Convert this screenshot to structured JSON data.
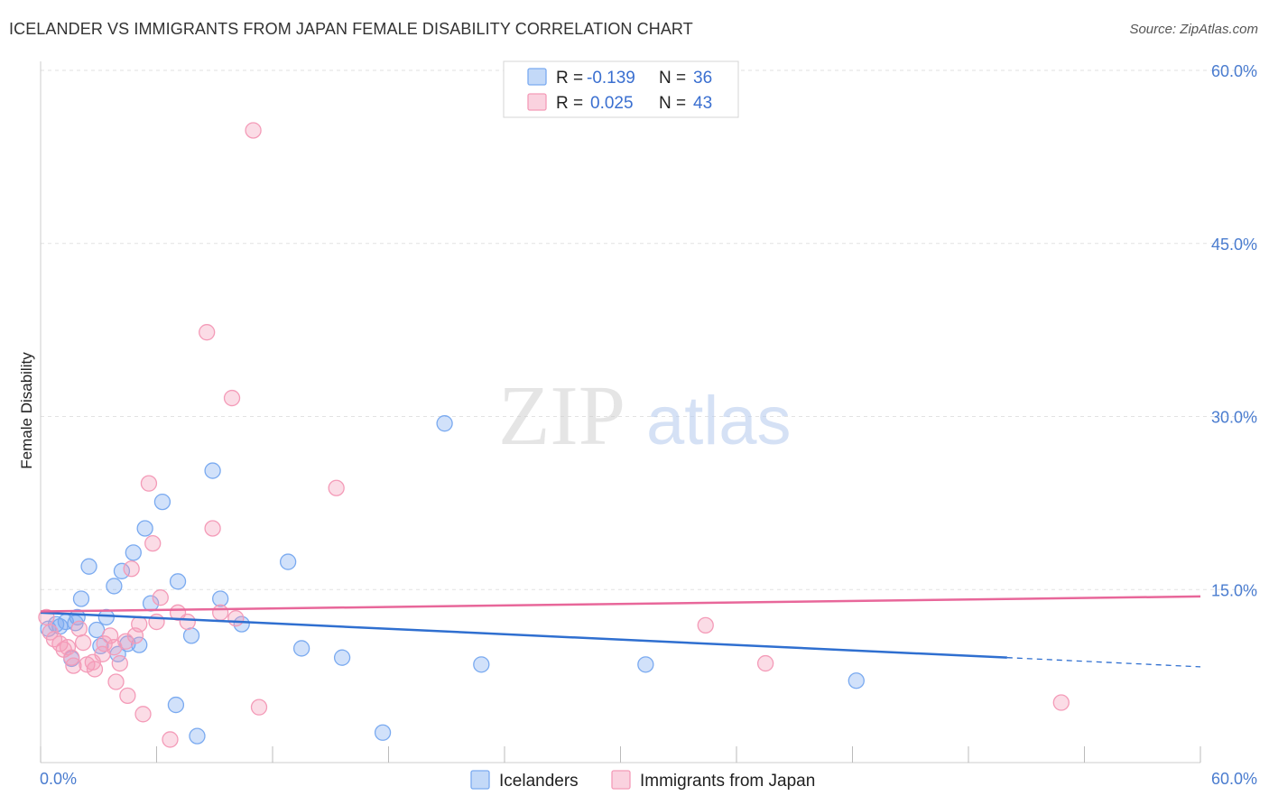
{
  "header": {
    "title": "ICELANDER VS IMMIGRANTS FROM JAPAN FEMALE DISABILITY CORRELATION CHART",
    "source": "Source: ZipAtlas.com"
  },
  "watermark": {
    "zip": "ZIP",
    "atlas": "atlas"
  },
  "stats_legend": {
    "r_label": "R =",
    "n_label": "N =",
    "rows": [
      {
        "series": "Icelanders",
        "r": "-0.139",
        "n": "36",
        "color": "#7aaaf0"
      },
      {
        "series": "Immigrants from Japan",
        "r": "0.025",
        "n": "43",
        "color": "#f49bb8"
      }
    ]
  },
  "chart_data": {
    "type": "scatter",
    "title": "ICELANDER VS IMMIGRANTS FROM JAPAN FEMALE DISABILITY CORRELATION CHART",
    "xlabel": "",
    "ylabel": "Female Disability",
    "xlim": [
      0,
      60
    ],
    "ylim": [
      0,
      60
    ],
    "x_tick_labels": [
      "0.0%",
      "60.0%"
    ],
    "y_ticks": [
      15,
      30,
      45,
      60
    ],
    "y_tick_labels": [
      "15.0%",
      "30.0%",
      "45.0%",
      "60.0%"
    ],
    "grid": true,
    "series": [
      {
        "name": "Icelanders",
        "color": "#7aaaf0",
        "line_color": "#2f6fd0",
        "trend": {
          "x0": 0,
          "y0": 13.0,
          "x1": 50,
          "y1": 9.1,
          "dash_to_x": 60,
          "dash_to_y": 8.3
        },
        "points": [
          [
            0.4,
            11.6
          ],
          [
            0.8,
            12.0
          ],
          [
            1.0,
            11.8
          ],
          [
            1.3,
            12.2
          ],
          [
            1.6,
            9.0
          ],
          [
            1.9,
            12.6
          ],
          [
            2.1,
            14.2
          ],
          [
            2.5,
            17.0
          ],
          [
            2.9,
            11.5
          ],
          [
            3.1,
            10.1
          ],
          [
            3.4,
            12.6
          ],
          [
            3.8,
            15.3
          ],
          [
            4.0,
            9.4
          ],
          [
            4.2,
            16.6
          ],
          [
            4.5,
            10.3
          ],
          [
            4.8,
            18.2
          ],
          [
            5.1,
            10.2
          ],
          [
            5.4,
            20.3
          ],
          [
            5.7,
            13.8
          ],
          [
            6.3,
            22.6
          ],
          [
            7.1,
            15.7
          ],
          [
            7.8,
            11.0
          ],
          [
            8.1,
            2.3
          ],
          [
            8.9,
            25.3
          ],
          [
            9.3,
            14.2
          ],
          [
            10.4,
            12.0
          ],
          [
            12.8,
            17.4
          ],
          [
            13.5,
            9.9
          ],
          [
            15.6,
            9.1
          ],
          [
            17.7,
            2.6
          ],
          [
            20.9,
            29.4
          ],
          [
            22.8,
            8.5
          ],
          [
            31.3,
            8.5
          ],
          [
            7.0,
            5.0
          ],
          [
            42.2,
            7.1
          ],
          [
            1.8,
            12.1
          ]
        ]
      },
      {
        "name": "Immigrants from Japan",
        "color": "#f49bb8",
        "line_color": "#e8679a",
        "trend": {
          "x0": 0,
          "y0": 13.1,
          "x1": 60,
          "y1": 14.4
        },
        "points": [
          [
            0.3,
            12.6
          ],
          [
            0.5,
            11.3
          ],
          [
            0.7,
            10.7
          ],
          [
            1.0,
            10.3
          ],
          [
            1.2,
            9.8
          ],
          [
            1.4,
            10.0
          ],
          [
            1.6,
            9.1
          ],
          [
            1.7,
            8.4
          ],
          [
            2.0,
            11.6
          ],
          [
            2.2,
            10.4
          ],
          [
            2.4,
            8.5
          ],
          [
            2.7,
            8.7
          ],
          [
            2.8,
            8.1
          ],
          [
            3.2,
            9.4
          ],
          [
            3.3,
            10.3
          ],
          [
            3.6,
            11.0
          ],
          [
            3.8,
            10.0
          ],
          [
            3.9,
            7.0
          ],
          [
            4.1,
            8.6
          ],
          [
            4.4,
            10.5
          ],
          [
            4.5,
            5.8
          ],
          [
            4.7,
            16.8
          ],
          [
            4.9,
            11.0
          ],
          [
            5.1,
            12.0
          ],
          [
            5.3,
            4.2
          ],
          [
            5.6,
            24.2
          ],
          [
            5.8,
            19.0
          ],
          [
            6.0,
            12.2
          ],
          [
            6.2,
            14.3
          ],
          [
            6.7,
            2.0
          ],
          [
            7.1,
            13.0
          ],
          [
            7.6,
            12.2
          ],
          [
            8.6,
            37.3
          ],
          [
            8.9,
            20.3
          ],
          [
            9.3,
            13.0
          ],
          [
            9.9,
            31.6
          ],
          [
            10.1,
            12.5
          ],
          [
            11.0,
            54.8
          ],
          [
            11.3,
            4.8
          ],
          [
            15.3,
            23.8
          ],
          [
            34.4,
            11.9
          ],
          [
            37.5,
            8.6
          ],
          [
            52.8,
            5.2
          ]
        ]
      }
    ]
  },
  "bottom_legend": [
    {
      "label": "Icelanders",
      "color": "#7aaaf0"
    },
    {
      "label": "Immigrants from Japan",
      "color": "#f49bb8"
    }
  ]
}
